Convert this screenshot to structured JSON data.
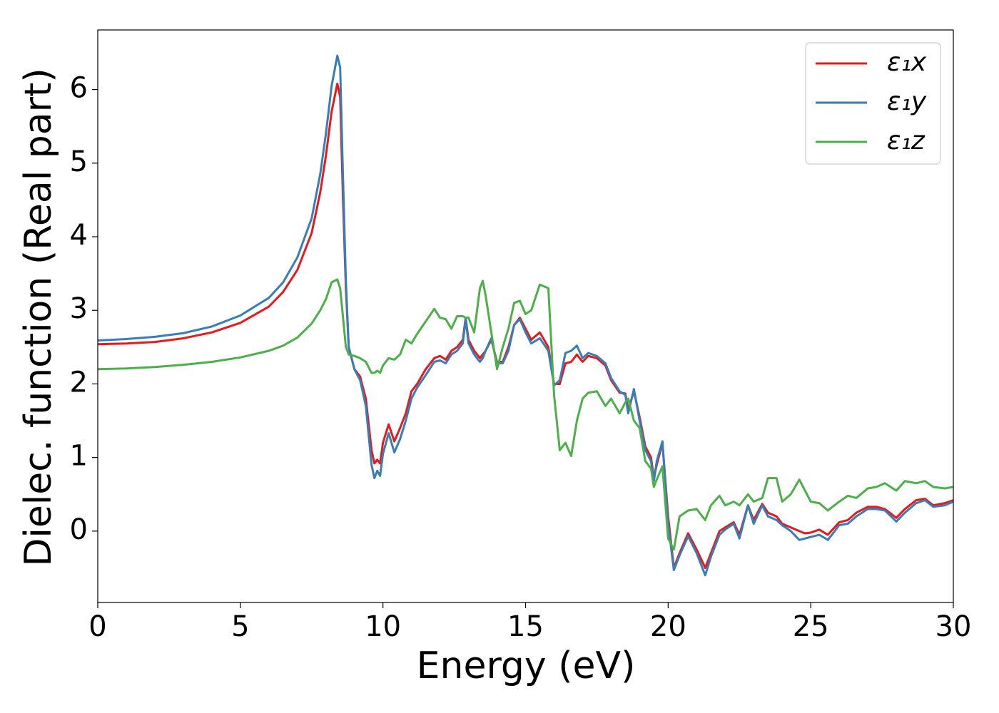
{
  "chart_data": {
    "type": "line",
    "xlabel": "Energy (eV)",
    "ylabel": "Dielec. function (Real part)",
    "x": [
      0,
      1,
      2,
      3,
      4,
      5,
      6,
      6.5,
      7,
      7.5,
      7.8,
      8,
      8.2,
      8.4,
      8.5,
      8.6,
      8.7,
      8.8,
      9,
      9.2,
      9.4,
      9.6,
      9.7,
      9.8,
      9.9,
      10,
      10.2,
      10.4,
      10.6,
      10.8,
      11,
      11.2,
      11.5,
      11.8,
      12,
      12.2,
      12.4,
      12.6,
      12.8,
      12.9,
      13,
      13.2,
      13.4,
      13.5,
      13.6,
      13.8,
      14,
      14.2,
      14.4,
      14.6,
      14.8,
      15,
      15.2,
      15.5,
      15.8,
      16,
      16.2,
      16.4,
      16.6,
      16.8,
      17,
      17.2,
      17.5,
      17.8,
      18,
      18.3,
      18.5,
      18.6,
      18.8,
      19,
      19.2,
      19.4,
      19.5,
      19.6,
      19.8,
      20,
      20.2,
      20.4,
      20.7,
      21,
      21.3,
      21.5,
      21.8,
      22,
      22.3,
      22.5,
      22.8,
      23,
      23.3,
      23.5,
      23.8,
      24,
      24.3,
      24.6,
      24.8,
      25,
      25.3,
      25.6,
      26,
      26.3,
      26.6,
      27,
      27.3,
      27.6,
      28,
      28.3,
      28.7,
      29,
      29.3,
      29.7,
      30
    ],
    "series": [
      {
        "name": "ε₁x",
        "color": "#e41a1c",
        "values": [
          2.54,
          2.55,
          2.57,
          2.62,
          2.7,
          2.83,
          3.05,
          3.25,
          3.55,
          4.05,
          4.6,
          5.1,
          5.7,
          6.08,
          5.9,
          4.5,
          3.3,
          2.5,
          2.2,
          2.1,
          1.8,
          1.1,
          0.92,
          0.97,
          0.92,
          1.2,
          1.45,
          1.22,
          1.4,
          1.6,
          1.9,
          2.0,
          2.2,
          2.35,
          2.38,
          2.33,
          2.45,
          2.5,
          2.6,
          2.9,
          2.6,
          2.45,
          2.35,
          2.4,
          2.45,
          2.6,
          2.3,
          2.3,
          2.5,
          2.8,
          2.9,
          2.75,
          2.6,
          2.7,
          2.5,
          2.0,
          2.0,
          2.28,
          2.3,
          2.4,
          2.3,
          2.38,
          2.35,
          2.25,
          2.05,
          1.88,
          1.87,
          1.65,
          1.9,
          1.55,
          1.15,
          1.0,
          0.72,
          0.9,
          1.2,
          0.2,
          -0.5,
          -0.3,
          -0.03,
          -0.25,
          -0.5,
          -0.3,
          0.0,
          0.05,
          0.12,
          -0.05,
          0.35,
          0.15,
          0.37,
          0.25,
          0.2,
          0.1,
          0.05,
          0.0,
          -0.03,
          -0.02,
          0.02,
          -0.05,
          0.12,
          0.15,
          0.25,
          0.33,
          0.33,
          0.3,
          0.18,
          0.3,
          0.42,
          0.44,
          0.35,
          0.38,
          0.42
        ]
      },
      {
        "name": "ε₁y",
        "color": "#377eb8",
        "values": [
          2.59,
          2.61,
          2.64,
          2.69,
          2.78,
          2.93,
          3.17,
          3.38,
          3.72,
          4.25,
          4.85,
          5.4,
          6.05,
          6.46,
          6.3,
          4.8,
          3.4,
          2.5,
          2.2,
          2.05,
          1.7,
          0.9,
          0.72,
          0.82,
          0.75,
          1.05,
          1.33,
          1.07,
          1.25,
          1.5,
          1.8,
          1.95,
          2.12,
          2.3,
          2.32,
          2.28,
          2.4,
          2.45,
          2.55,
          2.88,
          2.55,
          2.4,
          2.3,
          2.35,
          2.45,
          2.62,
          2.28,
          2.28,
          2.45,
          2.8,
          2.88,
          2.7,
          2.55,
          2.62,
          2.45,
          1.98,
          2.05,
          2.42,
          2.45,
          2.52,
          2.35,
          2.42,
          2.38,
          2.28,
          2.08,
          1.9,
          1.85,
          1.6,
          1.93,
          1.5,
          1.1,
          0.95,
          0.68,
          0.95,
          1.22,
          0.1,
          -0.53,
          -0.33,
          -0.07,
          -0.3,
          -0.6,
          -0.35,
          -0.05,
          0.02,
          0.1,
          -0.1,
          0.35,
          0.1,
          0.35,
          0.2,
          0.15,
          0.08,
          0.0,
          -0.12,
          -0.1,
          -0.08,
          -0.05,
          -0.12,
          0.08,
          0.1,
          0.2,
          0.3,
          0.3,
          0.28,
          0.13,
          0.25,
          0.38,
          0.42,
          0.33,
          0.35,
          0.4
        ]
      },
      {
        "name": "ε₁z",
        "color": "#4daf4a",
        "values": [
          2.2,
          2.21,
          2.23,
          2.26,
          2.3,
          2.36,
          2.45,
          2.52,
          2.63,
          2.82,
          3.0,
          3.15,
          3.38,
          3.42,
          3.3,
          2.9,
          2.5,
          2.4,
          2.38,
          2.35,
          2.3,
          2.15,
          2.15,
          2.18,
          2.15,
          2.25,
          2.35,
          2.33,
          2.4,
          2.6,
          2.55,
          2.68,
          2.85,
          3.02,
          2.9,
          2.88,
          2.75,
          2.92,
          2.92,
          2.9,
          2.9,
          2.7,
          3.3,
          3.4,
          3.2,
          2.7,
          2.2,
          2.5,
          2.75,
          3.1,
          3.13,
          2.95,
          3.0,
          3.35,
          3.3,
          1.85,
          1.1,
          1.2,
          1.02,
          1.5,
          1.8,
          1.88,
          1.9,
          1.7,
          1.8,
          1.6,
          1.75,
          1.8,
          1.5,
          1.4,
          0.95,
          0.85,
          0.6,
          0.7,
          0.88,
          -0.1,
          -0.25,
          0.2,
          0.28,
          0.3,
          0.15,
          0.35,
          0.48,
          0.35,
          0.4,
          0.35,
          0.5,
          0.4,
          0.45,
          0.72,
          0.72,
          0.4,
          0.5,
          0.7,
          0.55,
          0.4,
          0.38,
          0.28,
          0.4,
          0.48,
          0.45,
          0.58,
          0.6,
          0.65,
          0.55,
          0.68,
          0.65,
          0.68,
          0.6,
          0.58,
          0.6
        ]
      }
    ],
    "xlim": [
      0,
      30
    ],
    "xticks": [
      0,
      5,
      10,
      15,
      20,
      25,
      30
    ],
    "ylim": [
      -0.97,
      6.81
    ],
    "yticks": [
      0,
      1,
      2,
      3,
      4,
      5,
      6
    ],
    "grid": false,
    "legend": "upper right"
  }
}
